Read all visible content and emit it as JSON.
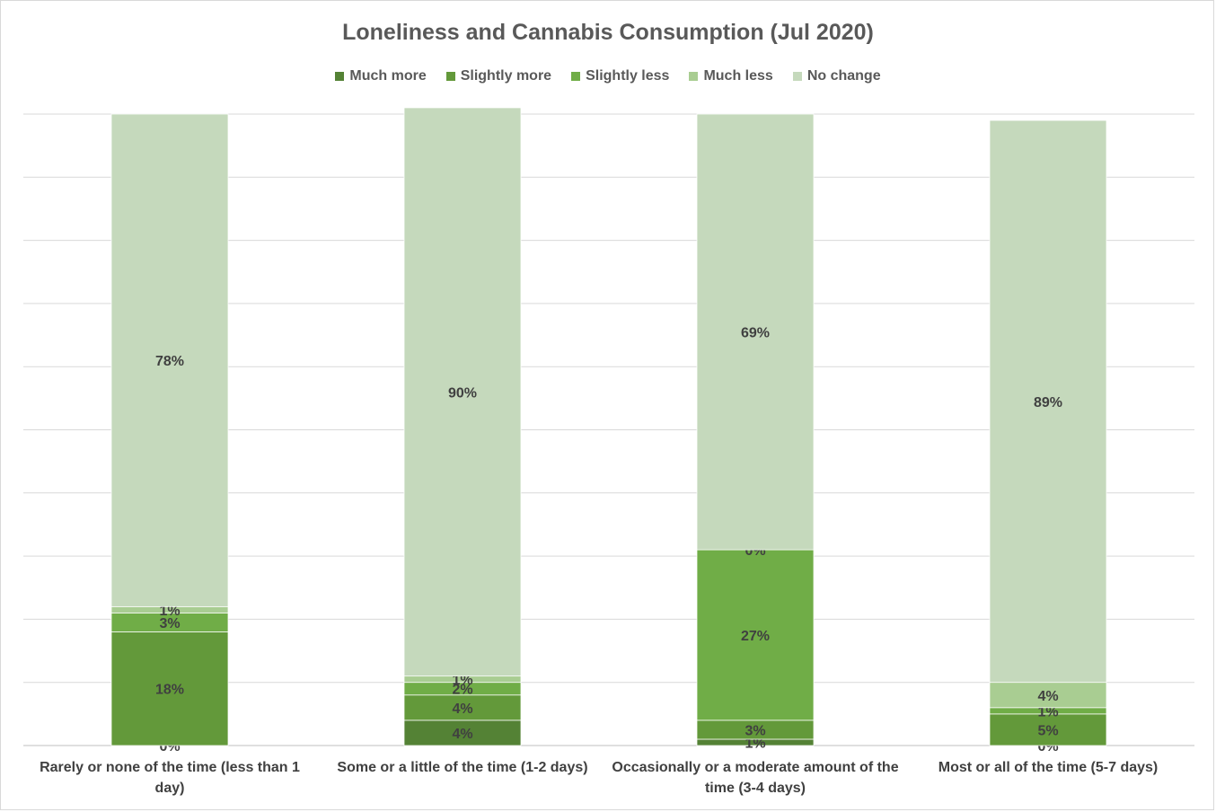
{
  "chart_data": {
    "type": "bar",
    "stacked": true,
    "title": "Loneliness and Cannabis Consumption (Jul 2020)",
    "xlabel": "",
    "ylabel": "",
    "ylim": [
      0,
      100
    ],
    "grid": true,
    "legend_position": "top",
    "categories": [
      "Rarely or none of the time (less than 1 day)",
      "Some or a little of the time (1-2 days)",
      "Occasionally or a moderate amount of the time (3-4 days)",
      "Most or all of the time (5-7 days)"
    ],
    "series": [
      {
        "name": "Much more",
        "color": "#548235",
        "values": [
          0,
          4,
          1,
          0
        ]
      },
      {
        "name": "Slightly more",
        "color": "#63993a",
        "values": [
          18,
          4,
          3,
          5
        ]
      },
      {
        "name": "Slightly less",
        "color": "#70ad47",
        "values": [
          3,
          2,
          27,
          1
        ]
      },
      {
        "name": "Much less",
        "color": "#a9cd92",
        "values": [
          1,
          1,
          0,
          4
        ]
      },
      {
        "name": "No change",
        "color": "#c5d9bc",
        "values": [
          78,
          90,
          69,
          89
        ]
      }
    ]
  }
}
